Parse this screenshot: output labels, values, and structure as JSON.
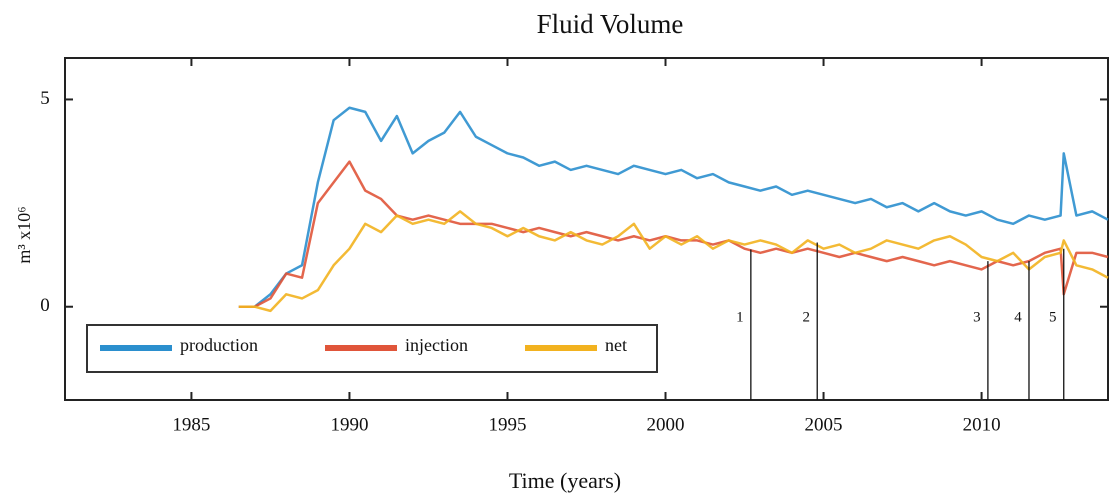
{
  "chart_data": {
    "type": "line",
    "title": "Fluid Volume",
    "xlabel": "Time (years)",
    "ylabel": "m³ x10⁶",
    "x": [
      1986.5,
      1987,
      1987.5,
      1988,
      1988.5,
      1989,
      1989.5,
      1990,
      1990.5,
      1991,
      1991.5,
      1992,
      1992.5,
      1993,
      1993.5,
      1994,
      1994.5,
      1995,
      1995.5,
      1996,
      1996.5,
      1997,
      1997.5,
      1998,
      1998.5,
      1999,
      1999.5,
      2000,
      2000.5,
      2001,
      2001.5,
      2002,
      2002.5,
      2003,
      2003.5,
      2004,
      2004.5,
      2005,
      2005.5,
      2006,
      2006.5,
      2007,
      2007.5,
      2008,
      2008.5,
      2009,
      2009.5,
      2010,
      2010.5,
      2011,
      2011.5,
      2012,
      2012.5,
      2012.6,
      2013,
      2013.5,
      2014
    ],
    "series": [
      {
        "name": "production",
        "color": "#2b8fce",
        "values": [
          0,
          0,
          0.3,
          0.8,
          1.0,
          3.0,
          4.5,
          4.8,
          4.7,
          4.0,
          4.6,
          3.7,
          4.0,
          4.2,
          4.7,
          4.1,
          3.9,
          3.7,
          3.6,
          3.4,
          3.5,
          3.3,
          3.4,
          3.3,
          3.2,
          3.4,
          3.3,
          3.2,
          3.3,
          3.1,
          3.2,
          3.0,
          2.9,
          2.8,
          2.9,
          2.7,
          2.8,
          2.7,
          2.6,
          2.5,
          2.6,
          2.4,
          2.5,
          2.3,
          2.5,
          2.3,
          2.2,
          2.3,
          2.1,
          2.0,
          2.2,
          2.1,
          2.2,
          3.7,
          2.2,
          2.3,
          2.1
        ]
      },
      {
        "name": "injection",
        "color": "#e0553a",
        "values": [
          0,
          0,
          0.2,
          0.8,
          0.7,
          2.5,
          3.0,
          3.5,
          2.8,
          2.6,
          2.2,
          2.1,
          2.2,
          2.1,
          2.0,
          2.0,
          2.0,
          1.9,
          1.8,
          1.9,
          1.8,
          1.7,
          1.8,
          1.7,
          1.6,
          1.7,
          1.6,
          1.7,
          1.6,
          1.6,
          1.5,
          1.6,
          1.4,
          1.3,
          1.4,
          1.3,
          1.4,
          1.3,
          1.2,
          1.3,
          1.2,
          1.1,
          1.2,
          1.1,
          1.0,
          1.1,
          1.0,
          0.9,
          1.1,
          1.0,
          1.1,
          1.3,
          1.4,
          0.3,
          1.3,
          1.3,
          1.2
        ]
      },
      {
        "name": "net",
        "color": "#f2b21f",
        "values": [
          0,
          0,
          -0.1,
          0.3,
          0.2,
          0.4,
          1.0,
          1.4,
          2.0,
          1.8,
          2.2,
          2.0,
          2.1,
          2.0,
          2.3,
          2.0,
          1.9,
          1.7,
          1.9,
          1.7,
          1.6,
          1.8,
          1.6,
          1.5,
          1.7,
          2.0,
          1.4,
          1.7,
          1.5,
          1.7,
          1.4,
          1.6,
          1.5,
          1.6,
          1.5,
          1.3,
          1.6,
          1.4,
          1.5,
          1.3,
          1.4,
          1.6,
          1.5,
          1.4,
          1.6,
          1.7,
          1.5,
          1.2,
          1.1,
          1.3,
          0.9,
          1.2,
          1.3,
          1.6,
          1.0,
          0.9,
          0.7
        ]
      }
    ],
    "xlim": [
      1981,
      2014
    ],
    "xticks": [
      1985,
      1990,
      1995,
      2000,
      2005,
      2010
    ],
    "ylim": [
      -2.25,
      6
    ],
    "yticks": [
      0,
      5
    ],
    "markers": [
      {
        "label": "1",
        "x": 2002.7,
        "top": 1.38
      },
      {
        "label": "2",
        "x": 2004.8,
        "top": 1.55
      },
      {
        "label": "3",
        "x": 2010.2,
        "top": 1.1
      },
      {
        "label": "4",
        "x": 2011.5,
        "top": 1.1
      },
      {
        "label": "5",
        "x": 2012.6,
        "top": 1.4
      }
    ],
    "legend": "lower left"
  }
}
